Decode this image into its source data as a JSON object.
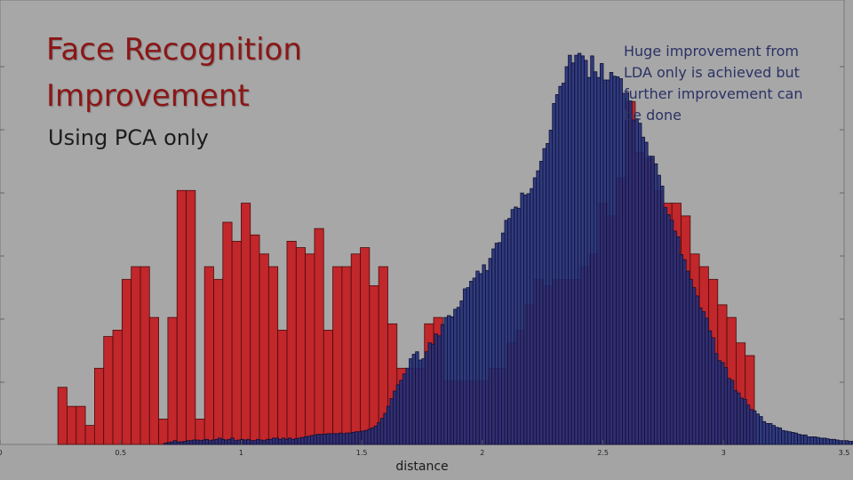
{
  "slide": {
    "title_line1": "Face Recognition",
    "title_line2": "Improvement",
    "subtitle": "Using PCA only",
    "note": "Huge improvement from LDA only is achieved but further improvement can be done"
  },
  "colors": {
    "background": "#a4a4a4",
    "plot_background": "#a7a7a7",
    "series_a": "#c1272b",
    "series_b": "#25307a",
    "title": "#8b1616",
    "note": "#2b3266"
  },
  "chart_data": {
    "type": "bar",
    "title": "",
    "xlabel": "distance",
    "ylabel": "",
    "xlim": [
      0,
      3.5
    ],
    "ylim": [
      0,
      70
    ],
    "grid": false,
    "x_ticks": [
      0,
      0.5,
      1,
      1.5,
      2,
      2.5,
      3,
      3.5
    ],
    "x_tick_labels": [
      "0",
      "0.5",
      "1",
      "1.5",
      "2",
      "2.5",
      "3",
      "3.5"
    ],
    "series": [
      {
        "bin_start": 0.24,
        "bin_width": 0.038,
        "values": [
          9,
          6,
          6,
          3,
          12,
          17,
          18,
          26,
          28,
          28,
          20,
          4,
          20,
          40,
          40,
          4,
          28,
          26,
          35,
          32,
          38,
          33,
          30,
          28,
          18,
          32,
          31,
          30,
          34,
          18,
          28,
          28,
          30,
          31,
          25,
          28,
          19,
          12,
          12,
          12,
          19,
          20,
          10,
          10,
          10,
          10,
          10,
          12,
          12,
          16,
          18,
          22,
          26,
          25,
          26,
          26,
          26,
          28,
          30,
          38,
          36,
          42,
          54,
          46,
          45,
          40,
          38,
          38,
          36,
          30,
          28,
          26,
          22,
          20,
          16,
          14
        ]
      },
      {
        "bin_start": 0.68,
        "bin_width": 0.0132,
        "values": [
          0.2,
          0.3,
          0.4,
          0.6,
          0.4,
          0.4,
          0.5,
          0.6,
          0.6,
          0.7,
          0.7,
          0.6,
          0.7,
          0.8,
          0.6,
          0.7,
          0.8,
          1,
          0.8,
          0.7,
          0.8,
          1,
          0.6,
          0.7,
          0.8,
          0.7,
          0.8,
          0.6,
          0.6,
          0.8,
          0.7,
          0.6,
          0.8,
          0.8,
          1,
          1,
          0.8,
          1,
          0.8,
          1,
          0.8,
          0.9,
          1,
          1.1,
          1.2,
          1.3,
          1.4,
          1.5,
          1.6,
          1.6,
          1.6,
          1.7,
          1.7,
          1.7,
          1.7,
          1.8,
          1.7,
          1.8,
          1.8,
          1.9,
          2,
          2,
          2.1,
          2.2,
          2.4,
          2.6,
          2.9,
          3.4,
          4.1,
          4.9,
          6,
          7.2,
          8.4,
          9.4,
          10.1,
          11.1,
          12,
          13.5,
          14.2,
          14.6,
          13.3,
          13.5,
          14.6,
          16,
          15.8,
          17.4,
          17.1,
          18.9,
          20,
          20.3,
          20.1,
          21.3,
          21.6,
          22.6,
          24.5,
          24.7,
          25.7,
          26.2,
          27.3,
          26.9,
          28.3,
          27.4,
          29.3,
          30.8,
          31.7,
          31.8,
          33.3,
          35.3,
          35.6,
          37,
          37.4,
          37.2,
          39.6,
          39.3,
          39.5,
          40.3,
          42,
          43.1,
          44.6,
          46.6,
          47.4,
          49.5,
          53.7,
          55.1,
          56.4,
          56.9,
          59.5,
          61.3,
          60.1,
          61.3,
          61.6,
          61.2,
          60.5,
          57.8,
          61.2,
          58.7,
          57.8,
          60,
          57.4,
          57.4,
          58.6,
          58,
          57.9,
          57.6,
          55.3,
          55.4,
          54.1,
          51.1,
          51.3,
          50.6,
          48.4,
          47.6,
          45.4,
          45.4,
          44.2,
          42.4,
          40.7,
          37.3,
          36.2,
          35.3,
          33.6,
          32.7,
          29.9,
          29.1,
          27.3,
          26,
          24.7,
          23.4,
          21.5,
          20.9,
          19.9,
          17.9,
          16.8,
          14.3,
          13.2,
          12.9,
          12.1,
          10.4,
          10.1,
          8.5,
          8.1,
          7.3,
          7.1,
          6.2,
          5.5,
          5.3,
          4.8,
          4.4,
          3.6,
          3.3,
          3.3,
          3,
          2.7,
          2.6,
          2.2,
          2.1,
          2,
          1.9,
          1.8,
          1.6,
          1.5,
          1.5,
          1.2,
          1.2,
          1.2,
          1.1,
          1,
          1,
          0.9,
          0.8,
          0.8,
          0.7,
          0.6,
          0.6,
          0.6,
          0.5,
          0.5,
          0.4,
          0.4,
          0.4,
          0.3,
          0.3,
          0.3,
          0.2,
          0.2,
          0.2,
          0.2,
          0.2,
          0.1,
          0.1,
          0.1
        ]
      }
    ]
  }
}
